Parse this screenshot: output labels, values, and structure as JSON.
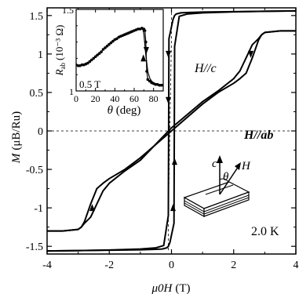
{
  "chart_data": [
    {
      "type": "line",
      "ylabel": "M",
      "ylabel_unit": "(μB/Ru)",
      "xlabel": "μ0H",
      "xlabel_unit": "(T)",
      "xlim": [
        -4,
        4
      ],
      "ylim": [
        -1.6,
        1.6
      ],
      "xticks": [
        "-4",
        "-2",
        "0",
        "2",
        "4"
      ],
      "yticks": [
        "-1.5",
        "-1",
        "-0.5",
        "0",
        "0.5",
        "1",
        "1.5"
      ],
      "annotations": {
        "hc": "H//c",
        "hab": "H//ab",
        "temp": "2.0 K"
      },
      "series": [
        {
          "name": "H//c",
          "x": [
            -4,
            -3,
            -2,
            -1,
            -0.5,
            -0.25,
            -0.1,
            -0.08,
            0.05,
            0.1,
            0.15,
            0.3,
            0.6,
            1,
            2,
            3,
            4
          ],
          "y": [
            -1.56,
            -1.555,
            -1.548,
            -1.535,
            -1.52,
            -1.49,
            -1.1,
            1.2,
            1.45,
            1.5,
            1.52,
            1.535,
            1.54,
            1.545,
            1.55,
            1.555,
            1.56
          ],
          "x_return": [
            4,
            3,
            2,
            1,
            0.5,
            0.25,
            0.1,
            0.08,
            -0.05,
            -0.1,
            -0.15,
            -0.3,
            -0.6,
            -1,
            -2,
            -3,
            -4
          ],
          "y_return": [
            1.56,
            1.555,
            1.548,
            1.535,
            1.52,
            1.49,
            1.1,
            -1.2,
            -1.45,
            -1.5,
            -1.52,
            -1.535,
            -1.54,
            -1.545,
            -1.55,
            -1.555,
            -1.56
          ]
        },
        {
          "name": "H//ab",
          "x": [
            -4,
            -3.5,
            -3,
            -2.9,
            -2.8,
            -2.6,
            -2.4,
            -2.2,
            -2,
            -1.5,
            -1,
            0,
            1,
            1.5,
            2,
            2.2,
            2.4,
            2.6,
            2.8,
            2.9,
            3,
            3.5,
            4
          ],
          "y": [
            -1.3,
            -1.3,
            -1.28,
            -1.25,
            -1.18,
            -0.95,
            -0.75,
            -0.68,
            -0.62,
            -0.5,
            -0.35,
            0,
            0.35,
            0.5,
            0.62,
            0.68,
            0.75,
            0.95,
            1.18,
            1.25,
            1.28,
            1.3,
            1.3
          ],
          "x_return": [
            4,
            3.5,
            3,
            2.9,
            2.8,
            2.6,
            2.4,
            2.2,
            2,
            1.5,
            1,
            0,
            -1,
            -1.5,
            -2,
            -2.2,
            -2.4,
            -2.6,
            -2.8,
            -2.9,
            -3,
            -3.5,
            -4
          ],
          "y_return": [
            1.3,
            1.3,
            1.28,
            1.25,
            1.2,
            1.12,
            0.95,
            0.78,
            0.68,
            0.52,
            0.38,
            0.04,
            -0.38,
            -0.52,
            -0.68,
            -0.78,
            -0.95,
            -1.12,
            -1.2,
            -1.25,
            -1.28,
            -1.3,
            -1.3
          ]
        },
        {
          "name": "dashed",
          "x": [
            -0.1,
            -0.1,
            0,
            0
          ],
          "y": [
            -1.55,
            -1.1,
            1.2,
            1.55
          ]
        }
      ]
    },
    {
      "type": "line",
      "ylabel": "R",
      "ylabel_sub": "ab",
      "ylabel_unit": "(10⁻³ Ω)",
      "xlabel": "θ (deg)",
      "xlim": [
        0,
        90
      ],
      "ylim": [
        1,
        1.5
      ],
      "xticks": [
        "0",
        "20",
        "40",
        "60",
        "80"
      ],
      "yticks": [
        "1",
        "1.5"
      ],
      "annotations": {
        "field": "0.5 T"
      },
      "series": [
        {
          "name": "sweep",
          "x": [
            0,
            2,
            4,
            6,
            8,
            10,
            12,
            14,
            16,
            18,
            20,
            22,
            24,
            26,
            28,
            30,
            32,
            34,
            36,
            38,
            40,
            42,
            44,
            46,
            48,
            50,
            52,
            54,
            56,
            58,
            60,
            62,
            64,
            66,
            68,
            70,
            71,
            72,
            73,
            74,
            76,
            78,
            80,
            82,
            84,
            86,
            88,
            90
          ],
          "y": [
            1.16,
            1.155,
            1.155,
            1.16,
            1.16,
            1.165,
            1.17,
            1.18,
            1.19,
            1.2,
            1.21,
            1.22,
            1.23,
            1.24,
            1.255,
            1.265,
            1.275,
            1.285,
            1.295,
            1.305,
            1.315,
            1.32,
            1.33,
            1.335,
            1.34,
            1.345,
            1.35,
            1.355,
            1.36,
            1.365,
            1.37,
            1.375,
            1.38,
            1.38,
            1.385,
            1.38,
            1.37,
            1.3,
            1.12,
            1.07,
            1.06,
            1.05,
            1.045,
            1.04,
            1.04,
            1.035,
            1.035,
            1.035
          ]
        },
        {
          "name": "return",
          "x": [
            90,
            88,
            86,
            84,
            82,
            80,
            78,
            76,
            74,
            72,
            70,
            69,
            68,
            66
          ],
          "y": [
            1.035,
            1.035,
            1.035,
            1.04,
            1.045,
            1.05,
            1.06,
            1.08,
            1.12,
            1.22,
            1.35,
            1.375,
            1.38,
            1.38
          ]
        }
      ]
    }
  ]
}
